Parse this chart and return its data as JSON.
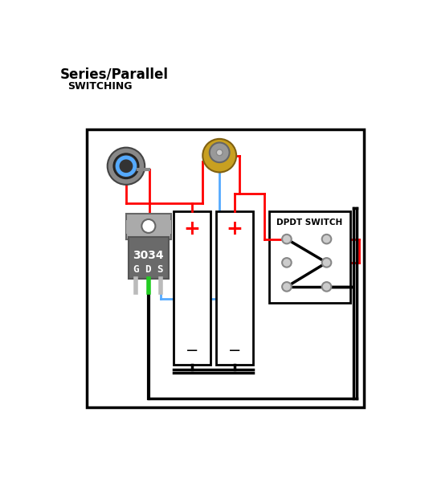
{
  "title_line1": "Series/Parallel",
  "title_line2": "SWITCHING",
  "bg_color": "#ffffff",
  "wire_red": "#ff0000",
  "wire_blue": "#55aaff",
  "wire_black": "#000000",
  "mosfet_top_color": "#aaaaaa",
  "mosfet_body_color": "#777777",
  "mosfet_text": "3034",
  "mosfet_gds": "G D S",
  "dpdt_label": "DPDT SWITCH",
  "outer_box_color": "#000000",
  "battery_fill": "#ffffff",
  "battery_outline": "#000000",
  "btn_outer_color": "#999999",
  "btn_inner_color": "#555555",
  "conn_outer_color": "#b8900a",
  "conn_inner_color": "#aaaaaa"
}
